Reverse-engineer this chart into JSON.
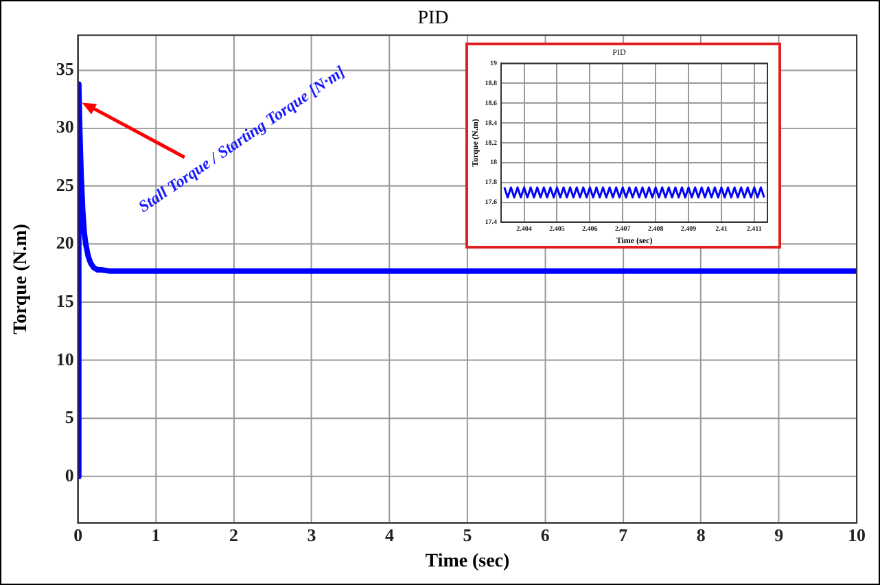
{
  "chart_data": [
    {
      "type": "line",
      "title": "PID",
      "xlabel": "Time (sec)",
      "ylabel": "Torque (N.m)",
      "series": [
        {
          "color": "#0000ff",
          "x": [
            0,
            0.01,
            0.02,
            0.04,
            0.06,
            0.08,
            0.1,
            0.13,
            0.16,
            0.2,
            0.25,
            0.3,
            0.4,
            0.6,
            1,
            10
          ],
          "values": [
            0,
            33.8,
            30.5,
            26,
            23,
            21,
            20,
            19,
            18.4,
            18,
            17.8,
            17.8,
            17.7,
            17.7,
            17.7,
            17.7
          ]
        }
      ],
      "xlim": [
        0,
        10
      ],
      "xticks": [
        0,
        1,
        2,
        3,
        4,
        5,
        6,
        7,
        8,
        9,
        10
      ],
      "ylim": [
        -4,
        38
      ],
      "yticks": [
        0,
        5,
        10,
        15,
        20,
        25,
        30,
        35
      ],
      "grid": true,
      "marker": "none",
      "line_style": "solid",
      "annotations": [
        {
          "text": "Stall Torque / Starting Torque [N·m]",
          "x": 0.05,
          "y": 32.2
        }
      ]
    },
    {
      "type": "line",
      "title": "PID",
      "xlabel": "Time (sec)",
      "ylabel": "Torque (N.m)",
      "series": [
        {
          "color": "#0000ff",
          "x": [
            2.4034,
            2.4035,
            2.4036,
            2.4037,
            2.4038,
            2.4039,
            2.404,
            2.4041,
            2.4042,
            2.4043,
            2.4044,
            2.4045,
            2.4046,
            2.4047,
            2.4048,
            2.4049,
            2.405,
            2.4051,
            2.4052,
            2.4053,
            2.4054,
            2.4055,
            2.4056,
            2.4057,
            2.4058,
            2.4059,
            2.406,
            2.4061,
            2.4062,
            2.4063,
            2.4064,
            2.4065,
            2.4066,
            2.4067,
            2.4068,
            2.4069,
            2.407,
            2.4071,
            2.4072,
            2.4073,
            2.4074,
            2.4075,
            2.4076,
            2.4077,
            2.4078,
            2.4079,
            2.408,
            2.4081,
            2.4082,
            2.4083,
            2.4084,
            2.4085,
            2.4086,
            2.4087,
            2.4088,
            2.4089,
            2.409,
            2.4091,
            2.4092,
            2.4093,
            2.4094,
            2.4095,
            2.4096,
            2.4097,
            2.4098,
            2.4099,
            2.41,
            2.4101,
            2.4102,
            2.4103,
            2.4104,
            2.4105,
            2.4106,
            2.4107,
            2.4108,
            2.4109,
            2.411,
            2.4111,
            2.4112,
            2.4113
          ],
          "values": [
            17.75,
            17.65,
            17.75,
            17.65,
            17.75,
            17.65,
            17.75,
            17.65,
            17.75,
            17.65,
            17.75,
            17.65,
            17.75,
            17.65,
            17.75,
            17.65,
            17.75,
            17.65,
            17.75,
            17.65,
            17.75,
            17.65,
            17.75,
            17.65,
            17.75,
            17.65,
            17.75,
            17.65,
            17.75,
            17.65,
            17.75,
            17.65,
            17.75,
            17.65,
            17.75,
            17.65,
            17.75,
            17.65,
            17.75,
            17.65,
            17.75,
            17.65,
            17.75,
            17.65,
            17.75,
            17.65,
            17.75,
            17.65,
            17.75,
            17.65,
            17.75,
            17.65,
            17.75,
            17.65,
            17.75,
            17.65,
            17.75,
            17.65,
            17.75,
            17.65,
            17.75,
            17.65,
            17.75,
            17.65,
            17.75,
            17.65,
            17.75,
            17.65,
            17.75,
            17.65,
            17.75,
            17.65,
            17.75,
            17.65,
            17.75,
            17.65,
            17.75,
            17.65,
            17.75,
            17.65
          ]
        }
      ],
      "xlim": [
        2.4033,
        2.4114
      ],
      "xticks": [
        2.404,
        2.405,
        2.406,
        2.407,
        2.408,
        2.409,
        2.41,
        2.411
      ],
      "ylim": [
        17.4,
        19
      ],
      "yticks": [
        17.4,
        17.6,
        17.8,
        18,
        18.2,
        18.4,
        18.6,
        18.8,
        19
      ],
      "grid": true,
      "marker": "none",
      "line_style": "solid"
    }
  ]
}
